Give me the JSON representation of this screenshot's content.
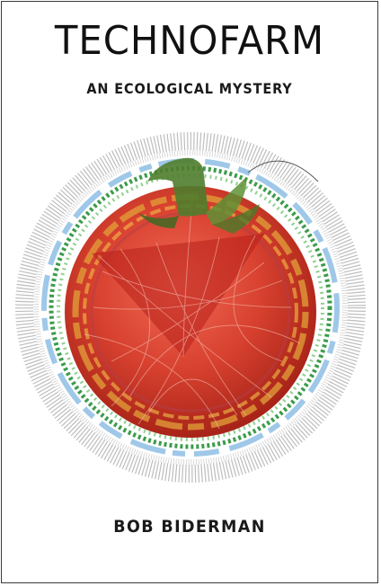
{
  "book": {
    "title": "TECHNOFARM",
    "subtitle": "AN ECOLOGICAL MYSTERY",
    "author": "BOB BIDERMAN"
  },
  "artwork": {
    "subject": "tomato-circos-plot",
    "colors": {
      "tomato_red": "#d8412f",
      "tomato_dark": "#a82418",
      "ring_blue": "#9fc8e8",
      "ring_green": "#3b9c4a",
      "stem_green": "#4f7d2c",
      "ring_orange": "#e2a13a"
    }
  }
}
